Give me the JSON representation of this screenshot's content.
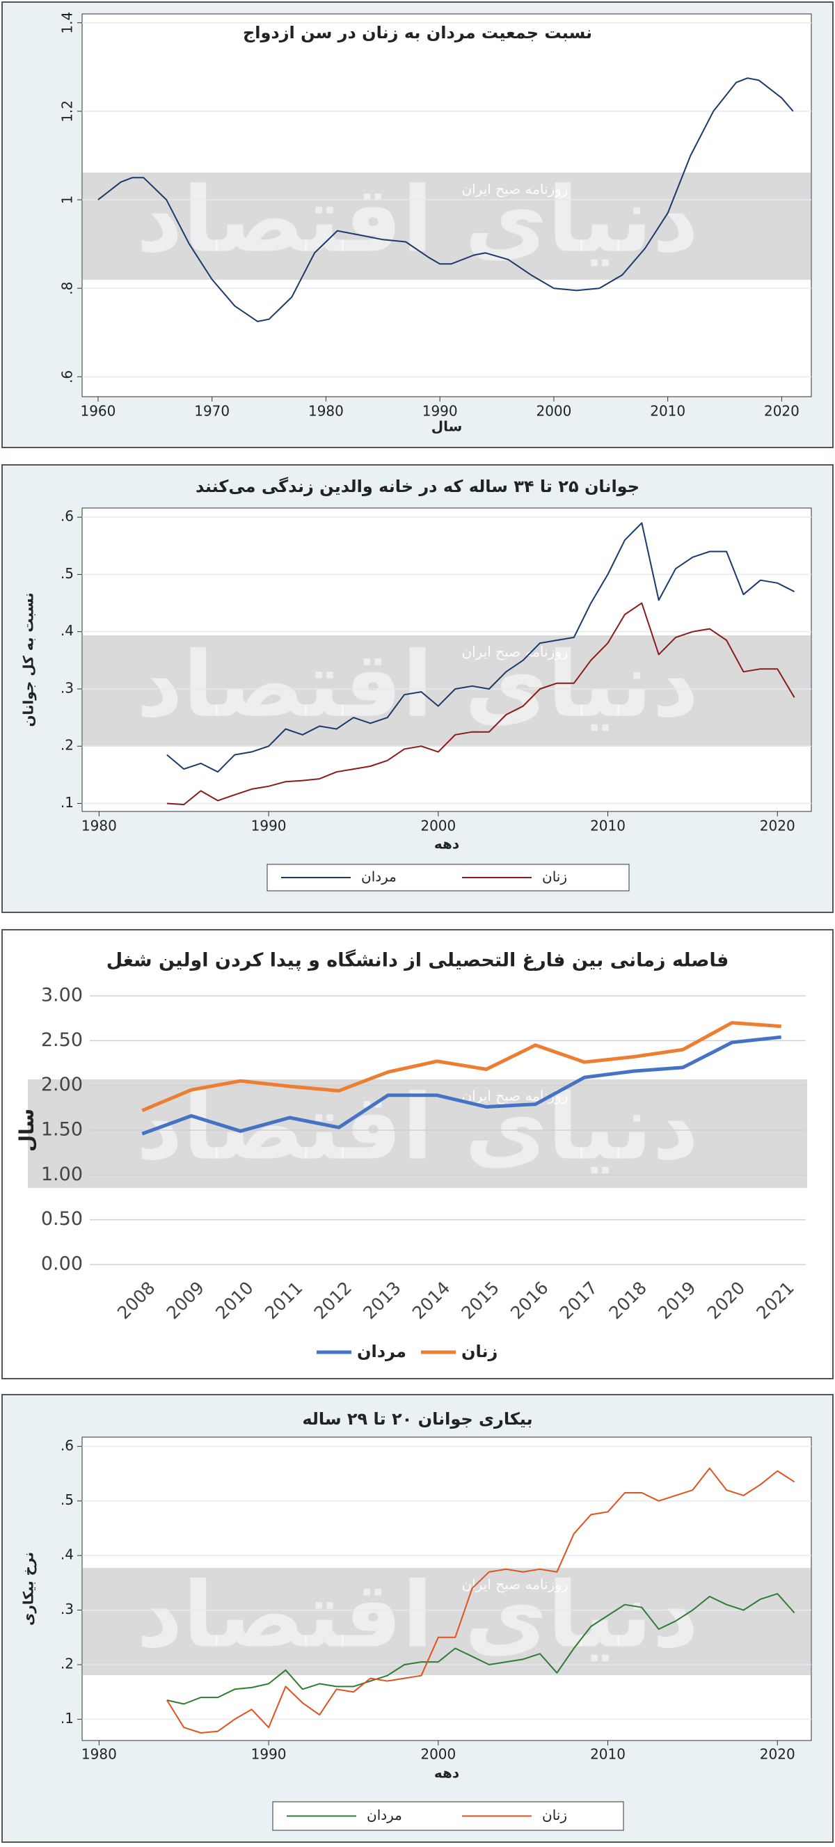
{
  "watermark": {
    "brand": "دنیای اقتصاد",
    "caption": "روزنامه صبح ایران"
  },
  "chart_data": [
    {
      "type": "line",
      "title": "نسبت جمعیت مردان به زنان در سن ازدواج",
      "x_label": "سال",
      "x": [
        1960,
        1962,
        1963,
        1964,
        1966,
        1968,
        1970,
        1972,
        1974,
        1975,
        1977,
        1979,
        1981,
        1983,
        1985,
        1987,
        1989,
        1990,
        1991,
        1993,
        1994,
        1996,
        1998,
        2000,
        2002,
        2004,
        2006,
        2008,
        2010,
        2012,
        2014,
        2016,
        2017,
        2018,
        2020,
        2021
      ],
      "series": [
        {
          "name": null,
          "color": "#1a3a6b",
          "values": [
            1.0,
            1.04,
            1.05,
            1.05,
            1.0,
            0.9,
            0.82,
            0.76,
            0.725,
            0.73,
            0.78,
            0.88,
            0.93,
            0.92,
            0.91,
            0.905,
            0.87,
            0.855,
            0.855,
            0.875,
            0.88,
            0.865,
            0.83,
            0.8,
            0.795,
            0.8,
            0.83,
            0.89,
            0.97,
            1.1,
            1.2,
            1.265,
            1.275,
            1.27,
            1.23,
            1.2
          ]
        }
      ],
      "xlim": [
        1958.6,
        2022.6
      ],
      "xticks": [
        1960,
        1970,
        1980,
        1990,
        2000,
        2010,
        2020
      ],
      "ylim": [
        0.555,
        1.42
      ],
      "yticks": [
        {
          "value": 0.6,
          "label": ".6"
        },
        {
          "value": 0.8,
          "label": ".8"
        },
        1,
        1.2,
        1.4
      ],
      "grid": true
    },
    {
      "type": "line",
      "title": "جوانان ۲۵ تا ۳۴ ساله که در خانه والدین زندگی می‌کنند",
      "x_label": "دهه",
      "y_label": "نسبت به کل جوانان",
      "x": [
        1984,
        1985,
        1986,
        1987,
        1988,
        1989,
        1990,
        1991,
        1992,
        1993,
        1994,
        1995,
        1996,
        1997,
        1998,
        1999,
        2000,
        2001,
        2002,
        2003,
        2004,
        2005,
        2006,
        2007,
        2008,
        2009,
        2010,
        2011,
        2012,
        2013,
        2014,
        2015,
        2016,
        2017,
        2018,
        2019,
        2020,
        2021
      ],
      "series": [
        {
          "name": "مردان",
          "color": "#1a3a6b",
          "values": [
            0.185,
            0.16,
            0.17,
            0.155,
            0.185,
            0.19,
            0.2,
            0.23,
            0.22,
            0.235,
            0.23,
            0.25,
            0.24,
            0.25,
            0.29,
            0.295,
            0.27,
            0.3,
            0.305,
            0.3,
            0.33,
            0.35,
            0.38,
            0.385,
            0.39,
            0.45,
            0.5,
            0.56,
            0.59,
            0.455,
            0.51,
            0.53,
            0.54,
            0.54,
            0.465,
            0.49,
            0.485,
            0.47
          ]
        },
        {
          "name": "زنان",
          "color": "#8b1a1a",
          "values": [
            0.1,
            0.098,
            0.122,
            0.105,
            0.115,
            0.125,
            0.13,
            0.138,
            0.14,
            0.143,
            0.155,
            0.16,
            0.165,
            0.175,
            0.195,
            0.2,
            0.19,
            0.22,
            0.225,
            0.225,
            0.255,
            0.27,
            0.3,
            0.31,
            0.31,
            0.35,
            0.38,
            0.43,
            0.45,
            0.36,
            0.39,
            0.4,
            0.405,
            0.385,
            0.33,
            0.335,
            0.335,
            0.285
          ]
        }
      ],
      "xlim": [
        1979,
        2022
      ],
      "xticks": [
        1980,
        1990,
        2000,
        2010,
        2020
      ],
      "ylim": [
        0.086,
        0.616
      ],
      "yticks": [
        {
          "value": 0.1,
          "label": ".1"
        },
        {
          "value": 0.2,
          "label": ".2"
        },
        {
          "value": 0.3,
          "label": ".3"
        },
        {
          "value": 0.4,
          "label": ".4"
        },
        {
          "value": 0.5,
          "label": ".5"
        },
        {
          "value": 0.6,
          "label": ".6"
        }
      ],
      "grid": true
    },
    {
      "type": "line",
      "title": "فاصله زمانی بین فارغ التحصیلی از دانشگاه و پیدا کردن اولین شغل",
      "y_label": "سال",
      "categories": [
        "2008",
        "2009",
        "2010",
        "2011",
        "2012",
        "2013",
        "2014",
        "2015",
        "2016",
        "2017",
        "2018",
        "2019",
        "2020",
        "2021"
      ],
      "series": [
        {
          "name": "مردان",
          "color": "#4472c4",
          "values": [
            1.46,
            1.66,
            1.49,
            1.64,
            1.53,
            1.89,
            1.89,
            1.76,
            1.79,
            2.09,
            2.16,
            2.2,
            2.48,
            2.54
          ]
        },
        {
          "name": "زنان",
          "color": "#ed7d31",
          "values": [
            1.72,
            1.95,
            2.05,
            1.99,
            1.94,
            2.15,
            2.27,
            2.18,
            2.45,
            2.26,
            2.32,
            2.4,
            2.7,
            2.66
          ]
        }
      ],
      "ylim": [
        0,
        3
      ],
      "yticks": [
        {
          "value": 0,
          "label": "0.00"
        },
        {
          "value": 0.5,
          "label": "0.50"
        },
        {
          "value": 1,
          "label": "1.00"
        },
        {
          "value": 1.5,
          "label": "1.50"
        },
        {
          "value": 2,
          "label": "2.00"
        },
        {
          "value": 2.5,
          "label": "2.50"
        },
        {
          "value": 3,
          "label": "3.00"
        }
      ],
      "grid": true
    },
    {
      "type": "line",
      "title": "بیکاری جوانان ۲۰ تا ۲۹ ساله",
      "x_label": "دهه",
      "y_label": "نرخ بیکاری",
      "x": [
        1984,
        1985,
        1986,
        1987,
        1988,
        1989,
        1990,
        1991,
        1992,
        1993,
        1994,
        1995,
        1996,
        1997,
        1998,
        1999,
        2000,
        2001,
        2002,
        2003,
        2004,
        2005,
        2006,
        2007,
        2008,
        2009,
        2010,
        2011,
        2012,
        2013,
        2014,
        2015,
        2016,
        2017,
        2018,
        2019,
        2020,
        2021
      ],
      "series": [
        {
          "name": "مردان",
          "color": "#2e7d32",
          "values": [
            0.135,
            0.128,
            0.14,
            0.14,
            0.155,
            0.158,
            0.165,
            0.19,
            0.155,
            0.165,
            0.16,
            0.16,
            0.17,
            0.18,
            0.2,
            0.205,
            0.205,
            0.23,
            0.215,
            0.2,
            0.205,
            0.21,
            0.22,
            0.185,
            0.23,
            0.27,
            0.29,
            0.31,
            0.305,
            0.265,
            0.28,
            0.3,
            0.325,
            0.31,
            0.3,
            0.32,
            0.33,
            0.295
          ]
        },
        {
          "name": "زنان",
          "color": "#e0521f",
          "values": [
            0.135,
            0.085,
            0.075,
            0.078,
            0.1,
            0.118,
            0.085,
            0.16,
            0.13,
            0.108,
            0.155,
            0.15,
            0.175,
            0.17,
            0.175,
            0.18,
            0.25,
            0.25,
            0.34,
            0.37,
            0.375,
            0.37,
            0.375,
            0.37,
            0.44,
            0.475,
            0.48,
            0.515,
            0.515,
            0.5,
            0.51,
            0.52,
            0.56,
            0.52,
            0.51,
            0.53,
            0.555,
            0.535
          ]
        }
      ],
      "xlim": [
        1979,
        2022
      ],
      "xticks": [
        1980,
        1990,
        2000,
        2010,
        2020
      ],
      "ylim": [
        0.061,
        0.617
      ],
      "yticks": [
        {
          "value": 0.1,
          "label": ".1"
        },
        {
          "value": 0.2,
          "label": ".2"
        },
        {
          "value": 0.3,
          "label": ".3"
        },
        {
          "value": 0.4,
          "label": ".4"
        },
        {
          "value": 0.5,
          "label": ".5"
        },
        {
          "value": 0.6,
          "label": ".6"
        }
      ],
      "grid": true
    }
  ]
}
